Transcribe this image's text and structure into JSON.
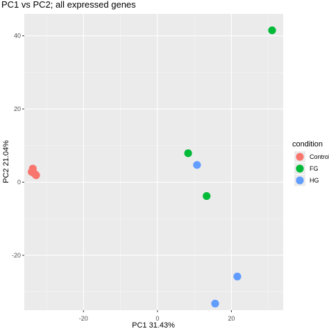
{
  "chart_data": {
    "type": "scatter",
    "title": "PC1 vs PC2; all expressed genes",
    "xlabel": "PC1  31.43%",
    "ylabel": "PC2  21.04%",
    "xlim": [
      -36,
      34
    ],
    "ylim": [
      -35,
      46
    ],
    "x_ticks": [
      -20,
      0,
      20
    ],
    "y_ticks": [
      -20,
      0,
      20,
      40
    ],
    "grid": true,
    "legend_title": "condition",
    "legend_position": "right",
    "series": [
      {
        "name": "Control",
        "color": "#F8766D",
        "points": [
          {
            "x": -33.7,
            "y": 3.7
          },
          {
            "x": -34.0,
            "y": 2.8
          },
          {
            "x": -33.2,
            "y": 2.3
          },
          {
            "x": -32.8,
            "y": 1.9
          }
        ]
      },
      {
        "name": "FG",
        "color": "#00BA38",
        "points": [
          {
            "x": 31.0,
            "y": 41.5
          },
          {
            "x": 8.3,
            "y": 7.9
          },
          {
            "x": 13.3,
            "y": -3.8
          }
        ]
      },
      {
        "name": "HG",
        "color": "#619CFF",
        "points": [
          {
            "x": 10.7,
            "y": 4.7
          },
          {
            "x": 21.6,
            "y": -25.8
          },
          {
            "x": 15.6,
            "y": -33.2
          }
        ]
      }
    ]
  }
}
